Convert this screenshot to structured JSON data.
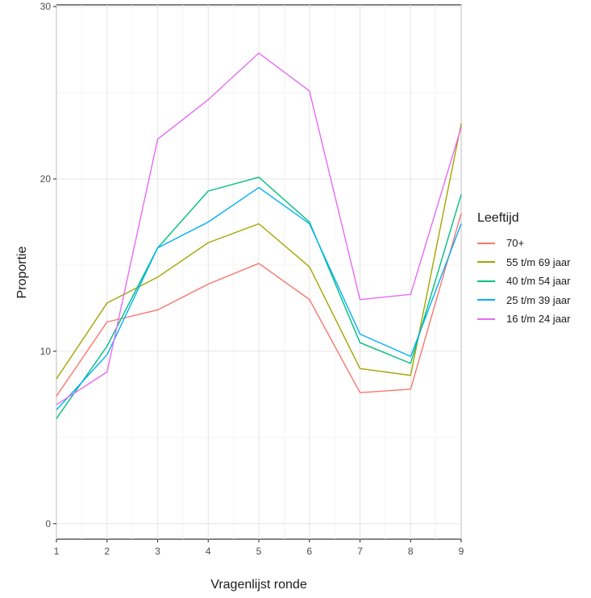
{
  "chart_data": {
    "type": "line",
    "xlabel": "Vragenlijst ronde",
    "ylabel": "Proportie",
    "x": [
      1,
      2,
      3,
      4,
      5,
      6,
      7,
      8,
      9
    ],
    "xlim": [
      1,
      9
    ],
    "ylim": [
      -0.9,
      30.1
    ],
    "x_ticks": [
      1,
      2,
      3,
      4,
      5,
      6,
      7,
      8,
      9
    ],
    "y_ticks": [
      0,
      10,
      20,
      30
    ],
    "grid": true,
    "legend_title": "Leeftijd",
    "legend_position": "right",
    "series": [
      {
        "name": "70+",
        "color": "#F8766D",
        "values": [
          7.4,
          11.7,
          12.4,
          13.9,
          15.1,
          13.0,
          7.6,
          7.8,
          18.0
        ]
      },
      {
        "name": "55 t/m 69 jaar",
        "color": "#A3A500",
        "values": [
          8.4,
          12.8,
          14.3,
          16.3,
          17.4,
          14.9,
          9.0,
          8.6,
          23.2
        ]
      },
      {
        "name": "40 t/m 54 jaar",
        "color": "#00BF7D",
        "values": [
          6.1,
          10.3,
          16.0,
          19.3,
          20.1,
          17.5,
          10.5,
          9.3,
          19.1
        ]
      },
      {
        "name": "25 t/m 39 jaar",
        "color": "#00B0F6",
        "values": [
          6.6,
          9.8,
          16.0,
          17.5,
          19.5,
          17.4,
          11.0,
          9.7,
          17.4
        ]
      },
      {
        "name": "16 t/m 24 jaar",
        "color": "#E76BF3",
        "values": [
          6.9,
          8.8,
          22.3,
          24.6,
          27.3,
          25.1,
          13.0,
          13.3,
          23.0
        ]
      }
    ]
  }
}
